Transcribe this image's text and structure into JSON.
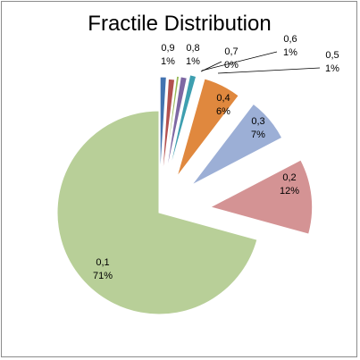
{
  "chart_data": {
    "type": "pie",
    "title": "Fractile Distribution",
    "legend": "none",
    "slices": [
      {
        "category": "0,1",
        "percent_label": "71%",
        "value": 71,
        "color": "#b8cf98",
        "exploded": false
      },
      {
        "category": "0,2",
        "percent_label": "12%",
        "value": 12,
        "color": "#d49394",
        "exploded": true
      },
      {
        "category": "0,3",
        "percent_label": "7%",
        "value": 7,
        "color": "#9cafd6",
        "exploded": true
      },
      {
        "category": "0,4",
        "percent_label": "6%",
        "value": 6,
        "color": "#e0883e",
        "exploded": true
      },
      {
        "category": "0,5",
        "percent_label": "1%",
        "value": 1,
        "color": "#3e9fb0",
        "exploded": true
      },
      {
        "category": "0,6",
        "percent_label": "1%",
        "value": 1,
        "color": "#7e68a3",
        "exploded": true
      },
      {
        "category": "0,7",
        "percent_label": "0%",
        "value": 0.4,
        "color": "#97b955",
        "exploded": true
      },
      {
        "category": "0,8",
        "percent_label": "1%",
        "value": 1,
        "color": "#b2504f",
        "exploded": true
      },
      {
        "category": "0,9",
        "percent_label": "1%",
        "value": 1,
        "color": "#4373b0",
        "exploded": true
      }
    ]
  }
}
